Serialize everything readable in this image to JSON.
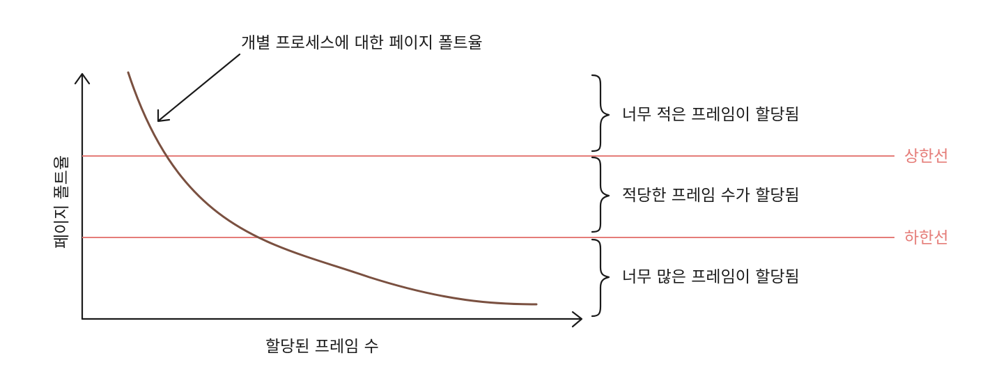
{
  "annotation": {
    "curve_label": "개별 프로세스에 대한 페이지 폴트율"
  },
  "axes": {
    "y_label": "페이지 폴트율",
    "x_label": "할당된 프레임 수"
  },
  "thresholds": {
    "upper_label": "상한선",
    "lower_label": "하한선",
    "color": "#e57c78"
  },
  "zones": {
    "top": "너무 적은 프레임이 할당됨",
    "middle": "적당한 프레임 수가 할당됨",
    "bottom": "너무 많은 프레임이 할당됨"
  },
  "curve": {
    "color": "#7a5040"
  }
}
